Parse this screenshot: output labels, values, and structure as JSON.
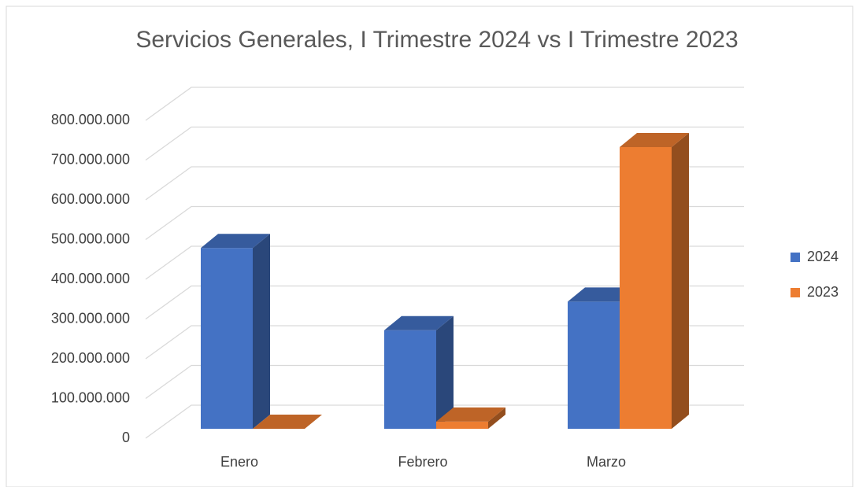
{
  "chart_data": {
    "type": "bar3d",
    "title": "Servicios Generales, I Trimestre 2024 vs I Trimestre 2023",
    "categories": [
      "Enero",
      "Febrero",
      "Marzo"
    ],
    "series": [
      {
        "name": "2024",
        "color": "#4472c4",
        "values": [
          455000000,
          248000000,
          320000000
        ]
      },
      {
        "name": "2023",
        "color": "#ed7d31",
        "values": [
          0,
          18000000,
          709000000
        ]
      }
    ],
    "ylim": [
      0,
      800000000
    ],
    "yticks": [
      0,
      {
        "value": 100000000,
        "label": "100.000.000"
      },
      {
        "value": 200000000,
        "label": "200.000.000"
      },
      {
        "value": 300000000,
        "label": "300.000.000"
      },
      {
        "value": 400000000,
        "label": "400.000.000"
      },
      {
        "value": 500000000,
        "label": "500.000.000"
      },
      {
        "value": 600000000,
        "label": "600.000.000"
      },
      {
        "value": 700000000,
        "label": "700.000.000"
      },
      {
        "value": 800000000,
        "label": "800.000.000"
      }
    ],
    "grid": true,
    "legend": "right"
  }
}
